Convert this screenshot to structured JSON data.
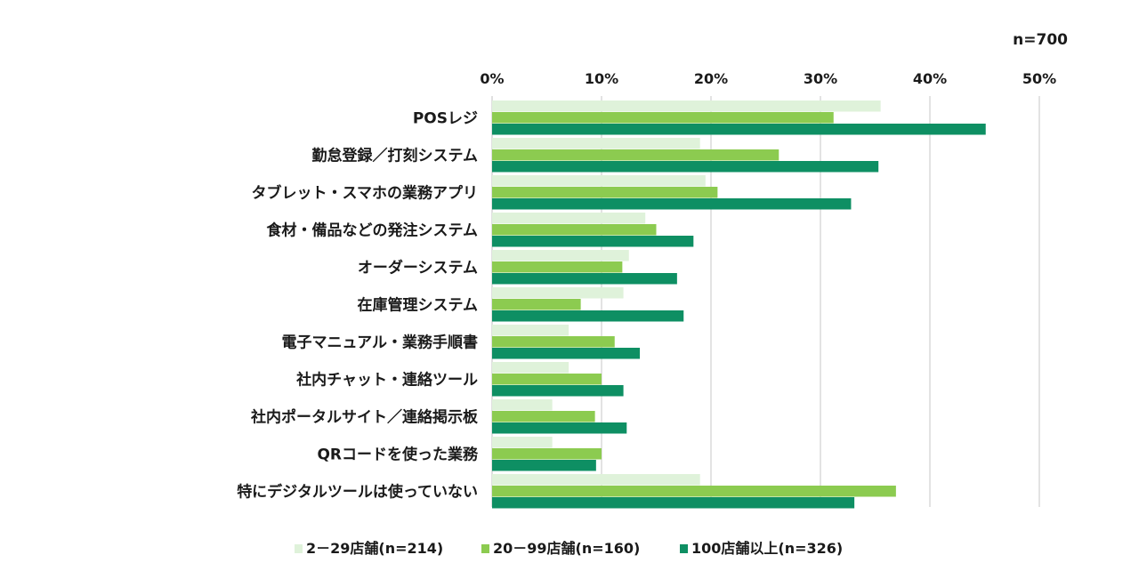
{
  "chart_data": {
    "type": "bar",
    "orientation": "horizontal",
    "sample_size_label": "n=700",
    "categories": [
      "POSレジ",
      "勤怠登録／打刻システム",
      "タブレット・スマホの業務アプリ",
      "食材・備品などの発注システム",
      "オーダーシステム",
      "在庫管理システム",
      "電子マニュアル・業務手順書",
      "社内チャット・連絡ツール",
      "社内ポータルサイト／連絡掲示板",
      "QRコードを使った業務",
      "特にデジタルツールは使っていない"
    ],
    "series": [
      {
        "name": "2－29店舗(n=214)",
        "color": "#dff2da",
        "values": [
          35.5,
          19.0,
          19.5,
          14.0,
          12.5,
          12.0,
          7.0,
          7.0,
          5.5,
          5.5,
          19.0
        ]
      },
      {
        "name": "20－99店舗(n=160)",
        "color": "#8ccb50",
        "values": [
          31.2,
          26.2,
          20.6,
          15.0,
          11.9,
          8.1,
          11.2,
          10.0,
          9.4,
          10.0,
          36.9
        ]
      },
      {
        "name": "100店舗以上(n=326)",
        "color": "#0e8f63",
        "values": [
          45.1,
          35.3,
          32.8,
          18.4,
          16.9,
          17.5,
          13.5,
          12.0,
          12.3,
          9.5,
          33.1
        ]
      }
    ],
    "xlim": [
      0,
      50
    ],
    "xticks": [
      0,
      10,
      20,
      30,
      40,
      50
    ],
    "xtick_labels": [
      "0%",
      "10%",
      "20%",
      "30%",
      "40%",
      "50%"
    ],
    "grid": true,
    "gridline_color": "#d0d0d0",
    "legend_position": "bottom"
  }
}
